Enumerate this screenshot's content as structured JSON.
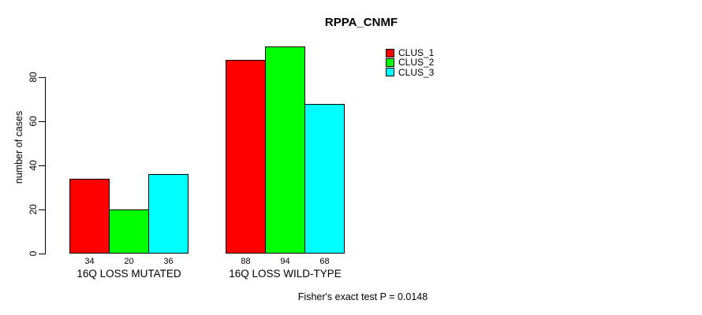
{
  "chart_data": {
    "type": "bar",
    "title": "RPPA_CNMF",
    "ylabel": "number of cases",
    "xlabel": "",
    "categories": [
      "16Q LOSS MUTATED",
      "16Q LOSS WILD-TYPE"
    ],
    "series": [
      {
        "name": "CLUS_1",
        "color": "#FF0000",
        "values": [
          34,
          88
        ]
      },
      {
        "name": "CLUS_2",
        "color": "#00FF00",
        "values": [
          20,
          94
        ]
      },
      {
        "name": "CLUS_3",
        "color": "#00FFFF",
        "values": [
          36,
          68
        ]
      }
    ],
    "bar_value_labels": [
      [
        34,
        20,
        36
      ],
      [
        88,
        94,
        68
      ]
    ],
    "yticks": [
      0,
      20,
      40,
      60,
      80
    ],
    "ylim": [
      0,
      94
    ],
    "grid": false,
    "legend": {
      "position": "top-right",
      "entries": [
        "CLUS_1",
        "CLUS_2",
        "CLUS_3"
      ]
    },
    "annotation": "Fisher's exact test P = 0.0148"
  }
}
